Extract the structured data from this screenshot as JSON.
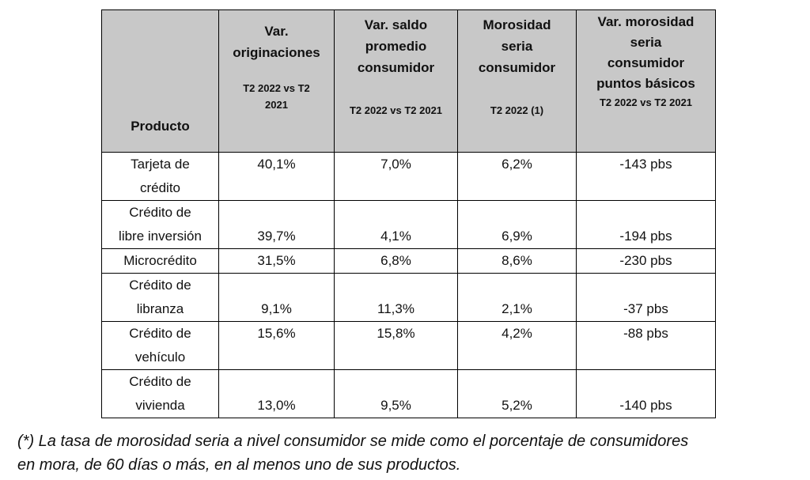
{
  "table": {
    "headers": {
      "producto": "Producto",
      "originaciones": {
        "title": [
          "Var.",
          "originaciones"
        ],
        "sub": [
          "T2 2022 vs T2",
          "2021"
        ]
      },
      "saldo": {
        "title": [
          "Var. saldo",
          "promedio",
          "consumidor"
        ],
        "sub": [
          "T2 2022 vs T2 2021"
        ]
      },
      "morosidad": {
        "title": [
          "Morosidad",
          "seria",
          "consumidor"
        ],
        "sub": [
          "T2 2022 (1)"
        ]
      },
      "var_morosidad": {
        "title": [
          "Var. morosidad",
          "seria",
          "consumidor",
          "puntos básicos"
        ],
        "sub": [
          "T2 2022 vs T2 2021"
        ]
      }
    },
    "rows": [
      {
        "producto": [
          "Tarjeta de",
          "crédito"
        ],
        "originaciones": "40,1%",
        "saldo": "7,0%",
        "morosidad": "6,2%",
        "var_morosidad": "-143 pbs"
      },
      {
        "producto": [
          "Crédito de",
          "libre inversión"
        ],
        "originaciones": "39,7%",
        "saldo": "4,1%",
        "morosidad": "6,9%",
        "var_morosidad": "-194 pbs"
      },
      {
        "producto": [
          "Microcrédito"
        ],
        "originaciones": "31,5%",
        "saldo": "6,8%",
        "morosidad": "8,6%",
        "var_morosidad": "-230 pbs"
      },
      {
        "producto": [
          "Crédito de",
          "libranza"
        ],
        "originaciones": "9,1%",
        "saldo": "11,3%",
        "morosidad": "2,1%",
        "var_morosidad": "-37 pbs"
      },
      {
        "producto": [
          "Crédito de",
          "vehículo"
        ],
        "originaciones": "15,6%",
        "saldo": "15,8%",
        "morosidad": "4,2%",
        "var_morosidad": "-88 pbs"
      },
      {
        "producto": [
          "Crédito de",
          "vivienda"
        ],
        "originaciones": "13,0%",
        "saldo": "9,5%",
        "morosidad": "5,2%",
        "var_morosidad": "-140 pbs"
      }
    ]
  },
  "footnote": [
    "(*) La tasa de morosidad seria a nivel consumidor se mide como el porcentaje de consumidores",
    "en mora, de 60 días o más, en al menos uno de sus productos."
  ]
}
